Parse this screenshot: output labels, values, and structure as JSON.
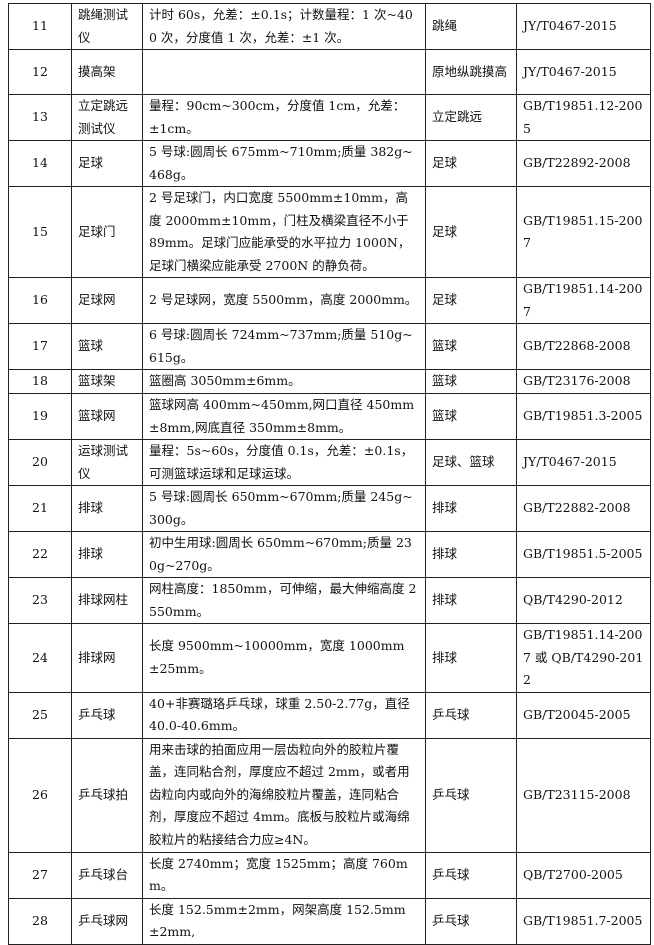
{
  "rows": [
    {
      "no": "11",
      "name": "跳绳测试仪",
      "spec": "计时 60s，允差：±0.1s；计数量程：1 次~400 次，分度值 1 次，允差：±1 次。",
      "item": "跳绳",
      "standard": "JY/T0467-2015"
    },
    {
      "no": "12",
      "name": "摸高架",
      "spec": "",
      "item": "原地纵跳摸高",
      "standard": "JY/T0467-2015"
    },
    {
      "no": "13",
      "name": "立定跳远测试仪",
      "spec": "量程：90cm~300cm，分度值 1cm，允差：±1cm。",
      "item": "立定跳远",
      "standard": "GB/T19851.12-2005"
    },
    {
      "no": "14",
      "name": "足球",
      "spec": "5 号球:圆周长 675mm~710mm;质量 382g~468g。",
      "item": "足球",
      "standard": "GB/T22892-2008"
    },
    {
      "no": "15",
      "name": "足球门",
      "spec": "2 号足球门，内口宽度 5500mm±10mm，高度 2000mm±10mm，门柱及横梁直径不小于 89mm。足球门应能承受的水平拉力 1000N，足球门横梁应能承受 2700N 的静负荷。",
      "item": "足球",
      "standard": "GB/T19851.15-2007"
    },
    {
      "no": "16",
      "name": "足球网",
      "spec": "2 号足球网，宽度 5500mm，高度 2000mm。",
      "item": "足球",
      "standard": "GB/T19851.14-2007"
    },
    {
      "no": "17",
      "name": "篮球",
      "spec": "6 号球:圆周长 724mm~737mm;质量 510g~615g。",
      "item": "篮球",
      "standard": "GB/T22868-2008"
    },
    {
      "no": "18",
      "name": "篮球架",
      "spec": "篮圈高 3050mm±6mm。",
      "item": "篮球",
      "standard": "GB/T23176-2008"
    },
    {
      "no": "19",
      "name": "篮球网",
      "spec": "篮球网高 400mm~450mm,网口直径 450mm±8mm,网底直径 350mm±8mm。",
      "item": "篮球",
      "standard": "GB/T19851.3-2005"
    },
    {
      "no": "20",
      "name": "运球测试仪",
      "spec": "量程：5s~60s，分度值 0.1s，允差：±0.1s，可测篮球运球和足球运球。",
      "item": "足球、篮球",
      "standard": "JY/T0467-2015"
    },
    {
      "no": "21",
      "name": "排球",
      "spec": "5 号球:圆周长 650mm~670mm;质量 245g~300g。",
      "item": "排球",
      "standard": "GB/T22882-2008"
    },
    {
      "no": "22",
      "name": "排球",
      "spec": "初中生用球:圆周长 650mm~670mm;质量 230g~270g。",
      "item": "排球",
      "standard": "GB/T19851.5-2005"
    },
    {
      "no": "23",
      "name": "排球网柱",
      "spec": "网柱高度：1850mm，可伸缩，最大伸缩高度 2550mm。",
      "item": "排球",
      "standard": "QB/T4290-2012"
    },
    {
      "no": "24",
      "name": "排球网",
      "spec": "长度 9500mm~10000mm，宽度 1000mm±25mm。",
      "item": "排球",
      "standard": "GB/T19851.14-2007 或 QB/T4290-2012"
    },
    {
      "no": "25",
      "name": "乒乓球",
      "spec": "40+非赛璐珞乒乓球，球重 2.50-2.77g，直径 40.0-40.6mm。",
      "item": "乒乓球",
      "standard": "GB/T20045-2005"
    },
    {
      "no": "26",
      "name": "乒乓球拍",
      "spec": "用来击球的拍面应用一层齿粒向外的胶粒片覆盖，连同粘合剂，厚度应不超过 2mm，或者用齿粒向内或向外的海绵胶粒片覆盖，连同粘合剂，厚度应不超过 4mm。底板与胶粒片或海绵胶粒片的粘接结合力应≥4N。",
      "item": "乒乓球",
      "standard": "GB/T23115-2008"
    },
    {
      "no": "27",
      "name": "乒乓球台",
      "spec": "长度 2740mm；宽度 1525mm；高度 760mm。",
      "item": "乒乓球",
      "standard": "QB/T2700-2005"
    },
    {
      "no": "28",
      "name": "乒乓球网",
      "spec": "长度 152.5mm±2mm，网架高度 152.5mm±2mm,",
      "item": "乒乓球",
      "standard": "GB/T19851.7-2005"
    }
  ]
}
